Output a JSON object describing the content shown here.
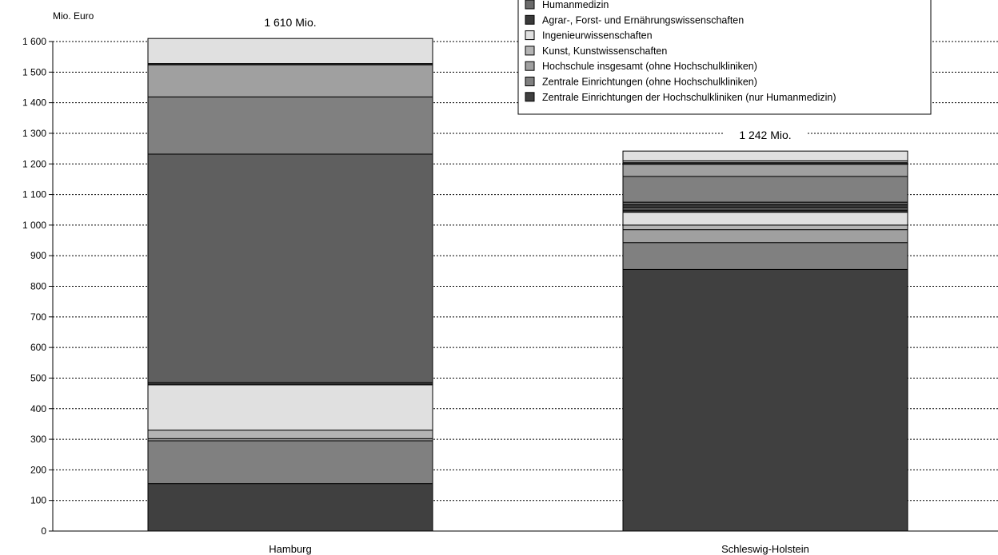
{
  "chart_data": {
    "type": "bar",
    "stacked": true,
    "ylabel": "Mio. Euro",
    "ylim": [
      0,
      1600
    ],
    "yticks": [
      0,
      100,
      200,
      300,
      400,
      500,
      600,
      700,
      800,
      900,
      1000,
      1100,
      1200,
      1300,
      1400,
      1500,
      1600
    ],
    "ytick_labels": [
      "0",
      "100",
      "200",
      "300",
      "400",
      "500",
      "600",
      "700",
      "800",
      "900",
      "1 000",
      "1 100",
      "1 200",
      "1 300",
      "1 400",
      "1 500",
      "1 600"
    ],
    "grid": true,
    "legend_position": "top-right",
    "categories": [
      "Hamburg",
      "Schleswig-Holstein"
    ],
    "totals": [
      "1 610 Mio.",
      "1 242 Mio."
    ],
    "legend": [
      {
        "label": "Humanmedizin",
        "color": "#6b6b6b"
      },
      {
        "label": "Agrar-, Forst- und Ernährungswissenschaften",
        "color": "#3a3a3a"
      },
      {
        "label": "Ingenieurwissenschaften",
        "color": "#e0e0e0"
      },
      {
        "label": "Kunst, Kunstwissenschaften",
        "color": "#b4b4b4"
      },
      {
        "label": "Hochschule insgesamt (ohne Hochschulkliniken)",
        "color": "#a0a0a0"
      },
      {
        "label": "Zentrale Einrichtungen (ohne Hochschulkliniken)",
        "color": "#808080"
      },
      {
        "label": "Zentrale Einrichtungen der Hochschulkliniken (nur Humanmedizin)",
        "color": "#404040"
      }
    ],
    "segments": [
      [
        {
          "value": 155,
          "color": "#404040"
        },
        {
          "value": 140,
          "color": "#808080"
        },
        {
          "value": 7,
          "color": "#a0a0a0"
        },
        {
          "value": 28,
          "color": "#b4b4b4"
        },
        {
          "value": 148,
          "color": "#e0e0e0"
        },
        {
          "value": 7,
          "color": "#3a3a3a"
        },
        {
          "value": 747,
          "color": "#5f5f5f"
        },
        {
          "value": 187,
          "color": "#808080"
        },
        {
          "value": 105,
          "color": "#a0a0a0"
        },
        {
          "value": 4,
          "color": "#303030"
        },
        {
          "value": 82,
          "color": "#e0e0e0"
        }
      ],
      [
        {
          "value": 855,
          "color": "#404040"
        },
        {
          "value": 88,
          "color": "#808080"
        },
        {
          "value": 42,
          "color": "#a0a0a0"
        },
        {
          "value": 15,
          "color": "#b4b4b4"
        },
        {
          "value": 42,
          "color": "#e0e0e0"
        },
        {
          "value": 7,
          "color": "#3a3a3a"
        },
        {
          "value": 8,
          "color": "#6b6b6b"
        },
        {
          "value": 10,
          "color": "#3a3a3a"
        },
        {
          "value": 8,
          "color": "#6b6b6b"
        },
        {
          "value": 84,
          "color": "#808080"
        },
        {
          "value": 40,
          "color": "#a0a0a0"
        },
        {
          "value": 5,
          "color": "#303030"
        },
        {
          "value": 6,
          "color": "#b4b4b4"
        },
        {
          "value": 32,
          "color": "#e0e0e0"
        }
      ]
    ]
  }
}
